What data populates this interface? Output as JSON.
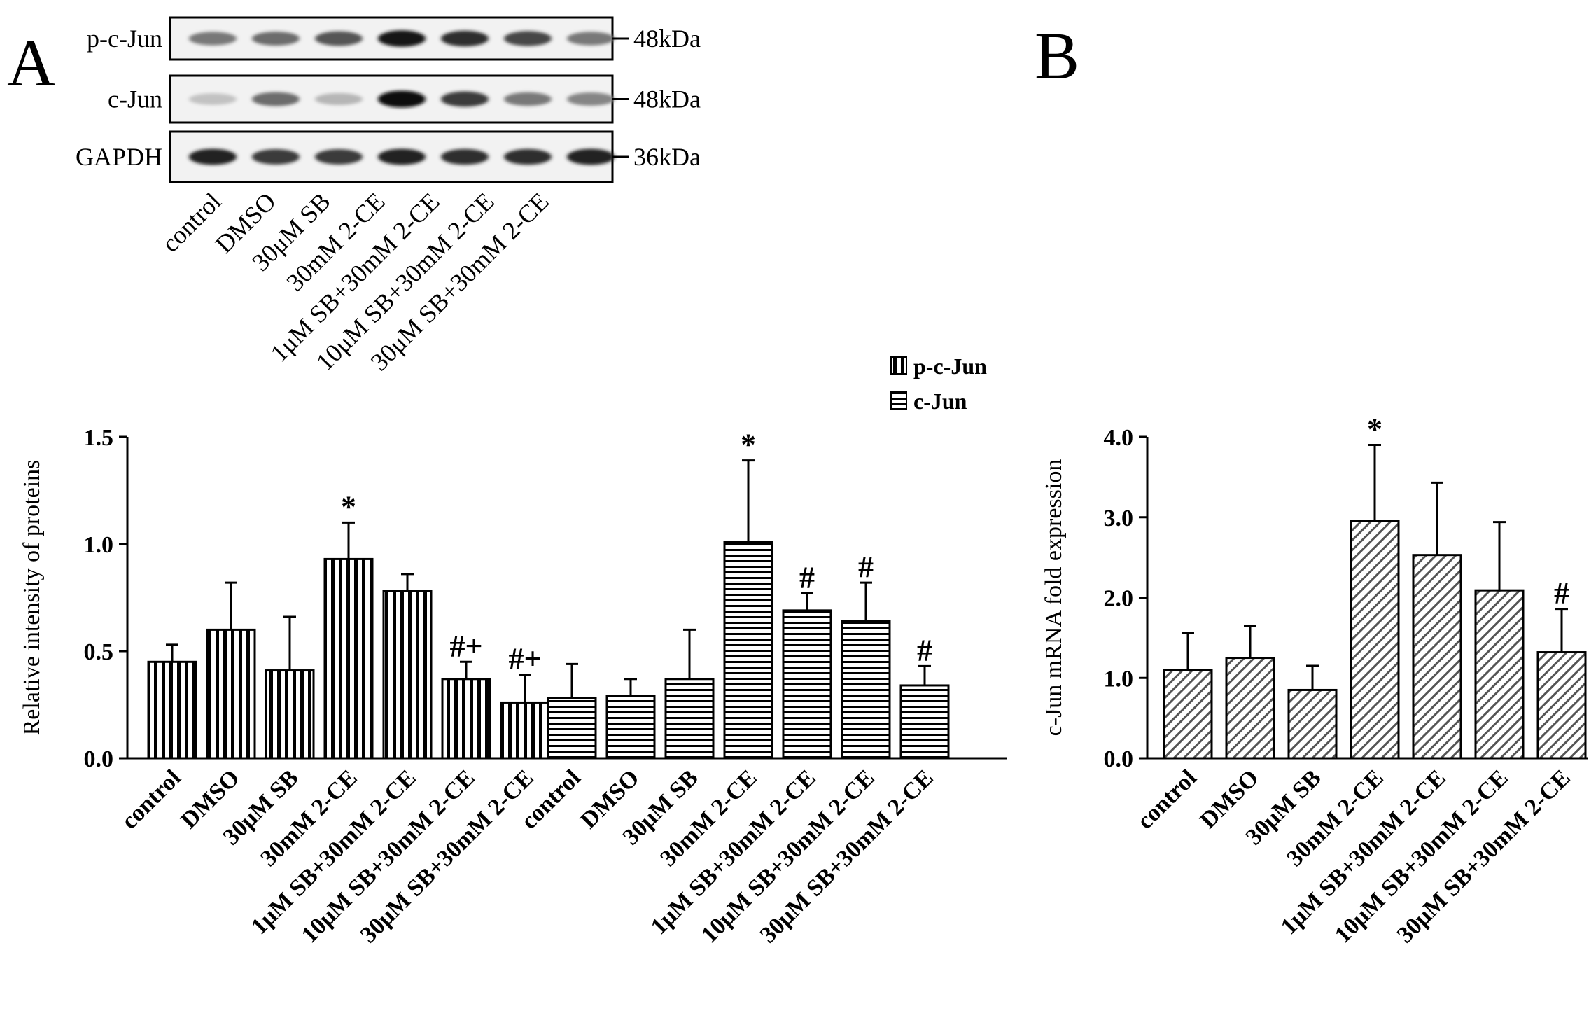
{
  "panels": {
    "a_letter": "A",
    "b_letter": "B"
  },
  "blot": {
    "rows": [
      {
        "name": "p-c-Jun",
        "size": "48kDa",
        "intensities": [
          0.55,
          0.6,
          0.7,
          0.95,
          0.85,
          0.75,
          0.55
        ]
      },
      {
        "name": "c-Jun",
        "size": "48kDa",
        "intensities": [
          0.25,
          0.6,
          0.3,
          1.0,
          0.8,
          0.55,
          0.5
        ]
      },
      {
        "name": "GAPDH",
        "size": "36kDa",
        "intensities": [
          0.9,
          0.8,
          0.8,
          0.9,
          0.85,
          0.85,
          0.9
        ]
      }
    ],
    "lanes": [
      "control",
      "DMSO",
      "30μM SB",
      "30mM 2-CE",
      "1μM SB+30mM 2-CE",
      "10μM SB+30mM 2-CE",
      "30μM SB+30mM 2-CE"
    ]
  },
  "chart_data": [
    {
      "type": "bar",
      "ylabel": "Relative intensity of proteins",
      "ylim": [
        0.0,
        1.5
      ],
      "yticks": [
        "0.0",
        "0.5",
        "1.0",
        "1.5"
      ],
      "legend": {
        "placement": "top-right"
      },
      "categories": [
        "control",
        "DMSO",
        "30μM SB",
        "30mM 2-CE",
        "1μM SB+30mM 2-CE",
        "10μM SB+30mM 2-CE",
        "30μM SB+30mM 2-CE"
      ],
      "series": [
        {
          "name": "p-c-Jun",
          "pattern": "vertical",
          "values": [
            0.45,
            0.6,
            0.41,
            0.93,
            0.78,
            0.37,
            0.26
          ],
          "errors": [
            0.08,
            0.22,
            0.25,
            0.17,
            0.08,
            0.08,
            0.13
          ],
          "annotations": [
            "",
            "",
            "",
            "*",
            "",
            "#+",
            "#+"
          ]
        },
        {
          "name": "c-Jun",
          "pattern": "horizontal",
          "values": [
            0.28,
            0.29,
            0.37,
            1.01,
            0.69,
            0.64,
            0.34
          ],
          "errors": [
            0.16,
            0.08,
            0.23,
            0.38,
            0.08,
            0.18,
            0.09
          ],
          "annotations": [
            "",
            "",
            "",
            "*",
            "#",
            "#",
            "#"
          ]
        }
      ]
    },
    {
      "type": "bar",
      "ylabel": "c-Jun mRNA fold expression",
      "ylim": [
        0.0,
        4.0
      ],
      "yticks": [
        "0.0",
        "1.0",
        "2.0",
        "3.0",
        "4.0"
      ],
      "categories": [
        "control",
        "DMSO",
        "30μM SB",
        "30mM 2-CE",
        "1μM SB+30mM 2-CE",
        "10μM SB+30mM 2-CE",
        "30μM SB+30mM 2-CE"
      ],
      "series": [
        {
          "pattern": "diagonal",
          "values": [
            1.1,
            1.25,
            0.85,
            2.95,
            2.53,
            2.09,
            1.32
          ],
          "errors": [
            0.46,
            0.4,
            0.3,
            0.95,
            0.9,
            0.85,
            0.54
          ],
          "annotations": [
            "",
            "",
            "",
            "*",
            "",
            "",
            "#"
          ]
        }
      ]
    }
  ]
}
